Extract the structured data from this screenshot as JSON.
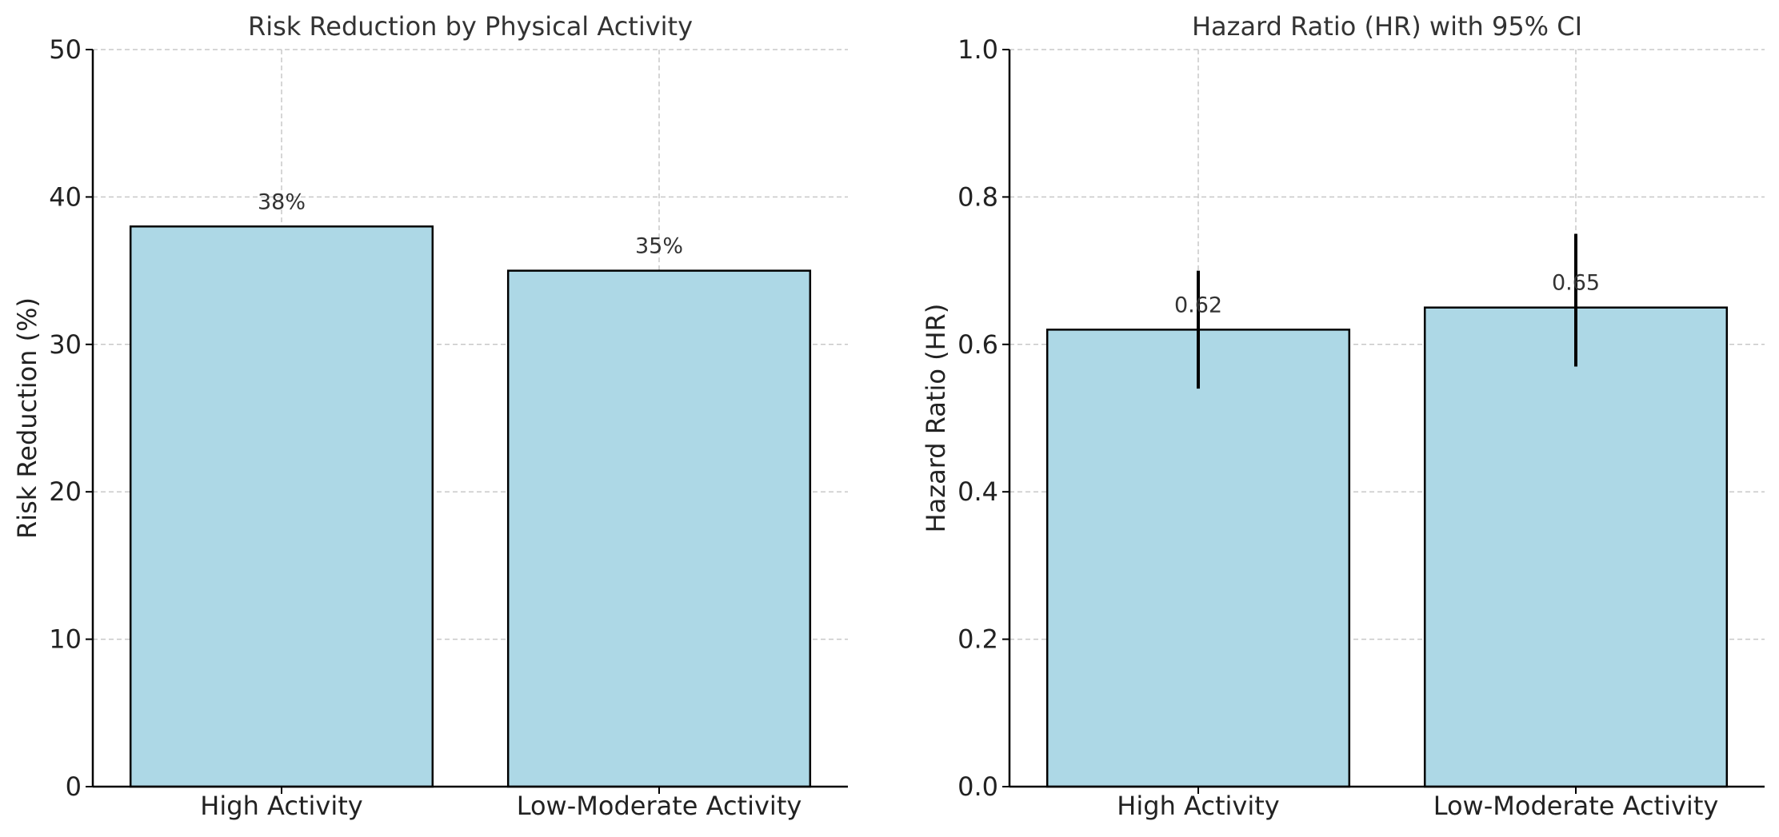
{
  "chart_data": [
    {
      "type": "bar",
      "title": "Risk Reduction by Physical Activity",
      "xlabel": "",
      "ylabel": "Risk Reduction (%)",
      "categories": [
        "High Activity",
        "Low-Moderate Activity"
      ],
      "values": [
        38,
        35
      ],
      "data_labels": [
        "38%",
        "35%"
      ],
      "ylim": [
        0,
        50
      ],
      "yticks": [
        0,
        10,
        20,
        30,
        40,
        50
      ],
      "ytick_labels": [
        "0",
        "10",
        "20",
        "30",
        "40",
        "50"
      ],
      "grid": true,
      "bar_color": "#add8e6"
    },
    {
      "type": "bar",
      "title": "Hazard Ratio (HR) with 95% CI",
      "xlabel": "",
      "ylabel": "Hazard Ratio (HR)",
      "categories": [
        "High Activity",
        "Low-Moderate Activity"
      ],
      "values": [
        0.62,
        0.65
      ],
      "error_low": [
        0.54,
        0.57
      ],
      "error_high": [
        0.7,
        0.75
      ],
      "data_labels": [
        "0.62",
        "0.65"
      ],
      "ylim": [
        0,
        1.0
      ],
      "yticks": [
        0,
        0.2,
        0.4,
        0.6,
        0.8,
        1.0
      ],
      "ytick_labels": [
        "0.0",
        "0.2",
        "0.4",
        "0.6",
        "0.8",
        "1.0"
      ],
      "grid": true,
      "bar_color": "#add8e6"
    }
  ]
}
